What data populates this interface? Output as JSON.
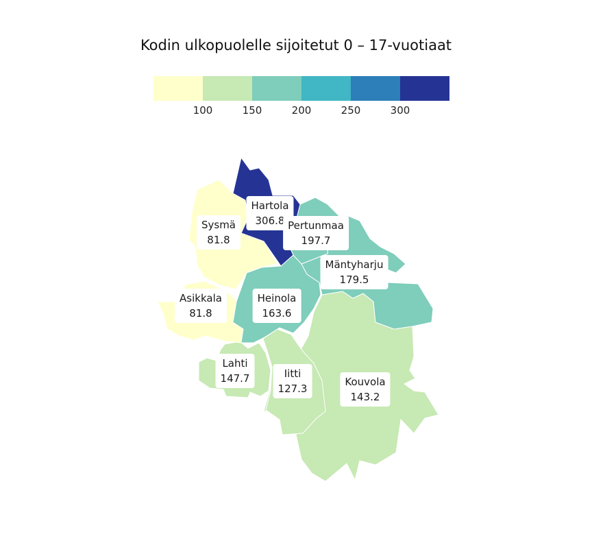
{
  "title": "Kodin ulkopuolelle sijoitetut 0 – 17-vuotiaat",
  "legend": {
    "colors": [
      "#ffffcc",
      "#c7e9b4",
      "#7fcdbb",
      "#41b6c4",
      "#2c7fb8",
      "#253494"
    ],
    "ticks": [
      "100",
      "150",
      "200",
      "250",
      "300"
    ]
  },
  "regions": [
    {
      "name": "Hartola",
      "value": "306.8",
      "color": "#253494"
    },
    {
      "name": "Sysmä",
      "value": "81.8",
      "color": "#ffffcc"
    },
    {
      "name": "Asikkala",
      "value": "81.8",
      "color": "#ffffcc"
    },
    {
      "name": "Pertunmaa",
      "value": "197.7",
      "color": "#7fcdbb"
    },
    {
      "name": "Mäntyharju",
      "value": "179.5",
      "color": "#7fcdbb"
    },
    {
      "name": "Heinola",
      "value": "163.6",
      "color": "#7fcdbb"
    },
    {
      "name": "Lahti",
      "value": "147.7",
      "color": "#c7e9b4"
    },
    {
      "name": "Iitti",
      "value": "127.3",
      "color": "#c7e9b4"
    },
    {
      "name": "Kouvola",
      "value": "143.2",
      "color": "#c7e9b4"
    }
  ]
}
